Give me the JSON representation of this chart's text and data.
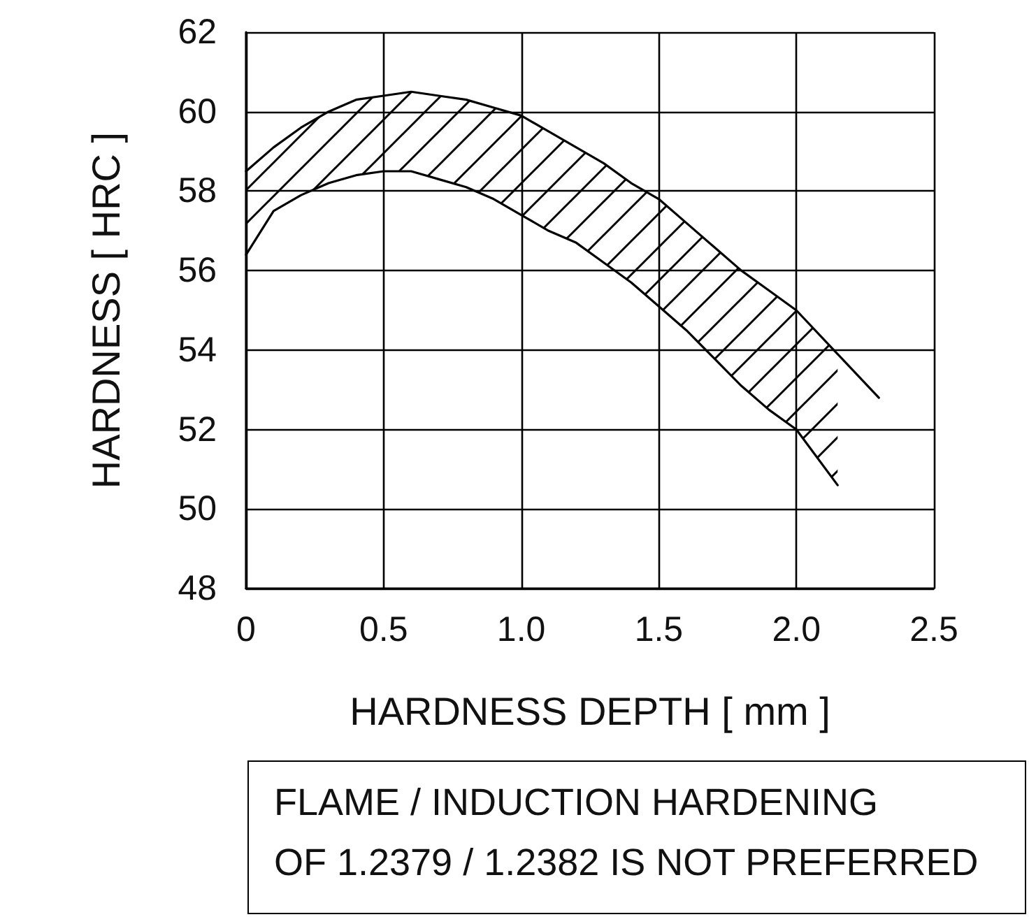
{
  "chart_data": {
    "type": "line",
    "xlabel": "HARDNESS DEPTH [ mm ]",
    "ylabel": "HARDNESS [ HRC ]",
    "annotations": [
      "FLAME / INDUCTION HARDENING\nOF 1.2379 / 1.2382 IS NOT PREFERRED"
    ],
    "x": [
      0,
      0.1,
      0.2,
      0.3,
      0.4,
      0.5,
      0.6,
      0.7,
      0.8,
      0.9,
      1.0,
      1.1,
      1.2,
      1.3,
      1.4,
      1.5,
      1.6,
      1.7,
      1.8,
      1.9,
      2.0,
      2.15,
      2.3
    ],
    "series": [
      {
        "color": "#000000",
        "values": [
          58.5,
          59.1,
          59.6,
          60.0,
          60.3,
          60.4,
          60.5,
          60.4,
          60.3,
          60.1,
          59.9,
          59.5,
          59.1,
          58.7,
          58.2,
          57.8,
          57.2,
          56.6,
          56.0,
          55.5,
          55.0,
          53.9,
          52.8
        ],
        "lower": [
          56.4,
          57.5,
          57.9,
          58.2,
          58.4,
          58.5,
          58.5,
          58.3,
          58.1,
          57.8,
          57.4,
          57.0,
          56.7,
          56.2,
          55.7,
          55.1,
          54.5,
          53.8,
          53.1,
          52.5,
          52.0,
          50.6,
          null
        ],
        "upper": [
          58.5,
          59.1,
          59.6,
          60.0,
          60.3,
          60.4,
          60.5,
          60.4,
          60.3,
          60.1,
          59.9,
          59.5,
          59.1,
          58.7,
          58.2,
          57.8,
          57.2,
          56.6,
          56.0,
          55.5,
          55.0,
          53.9,
          null
        ]
      },
      {
        "color": "#000000",
        "values": [
          56.4,
          57.5,
          57.9,
          58.2,
          58.4,
          58.5,
          58.5,
          58.3,
          58.1,
          57.8,
          57.4,
          57.0,
          56.7,
          56.2,
          55.7,
          55.1,
          54.5,
          53.8,
          53.1,
          52.5,
          52.0,
          50.6,
          null
        ]
      }
    ],
    "xlim": [
      0,
      2.5
    ],
    "xticks": [
      0,
      0.5,
      {
        "value": 1,
        "label": "1.0"
      },
      1.5,
      {
        "value": 2,
        "label": "2.0"
      },
      2.5
    ],
    "ylim": [
      48,
      62
    ],
    "yticks": [
      48,
      50,
      52,
      54,
      56,
      58,
      60,
      62
    ],
    "grid": true,
    "marker": "none",
    "line_style": "solid"
  }
}
